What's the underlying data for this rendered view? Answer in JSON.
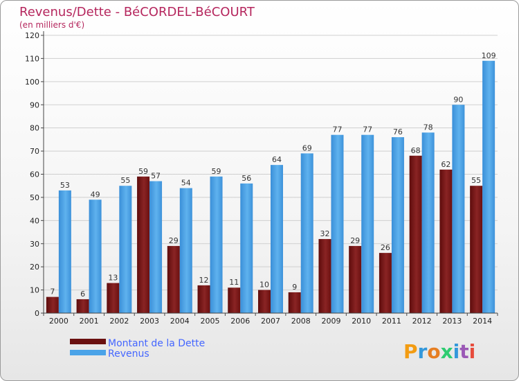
{
  "chart_data": {
    "type": "bar",
    "title": "Revenus/Dette - BéCORDEL-BéCOURT",
    "subtitle": "(en milliers d'€)",
    "categories": [
      "2000",
      "2001",
      "2002",
      "2003",
      "2004",
      "2005",
      "2006",
      "2007",
      "2008",
      "2009",
      "2010",
      "2011",
      "2012",
      "2013",
      "2014"
    ],
    "series": [
      {
        "name": "Montant de la Dette",
        "color": "#7a1414",
        "values": [
          7,
          6,
          13,
          59,
          29,
          12,
          11,
          10,
          9,
          32,
          29,
          26,
          68,
          62,
          55
        ]
      },
      {
        "name": "Revenus",
        "color": "#4aa3e8",
        "values": [
          53,
          49,
          55,
          57,
          54,
          59,
          56,
          64,
          69,
          77,
          77,
          76,
          78,
          90,
          109
        ]
      }
    ],
    "yticks": [
      0,
      10,
      20,
      30,
      40,
      50,
      60,
      70,
      80,
      90,
      100,
      110,
      120
    ],
    "ylim": [
      0,
      120
    ],
    "grid": true,
    "legend_position": "bottom-left"
  },
  "logo": {
    "parts": [
      "P",
      "r",
      "o",
      "x",
      "i",
      "t",
      "i"
    ],
    "colors": [
      "#f39c12",
      "#3498db",
      "#e67e22",
      "#2ecc71",
      "#3498db",
      "#9b59b6",
      "#e74c3c"
    ]
  }
}
